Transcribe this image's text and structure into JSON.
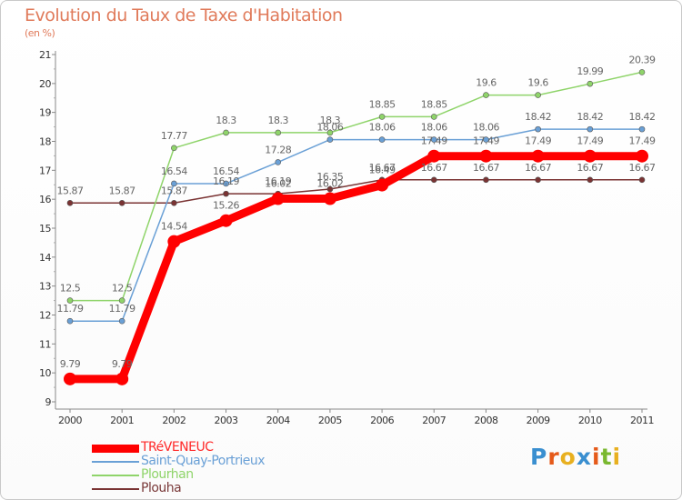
{
  "chart_data": {
    "type": "line",
    "title": "Evolution du Taux de Taxe d'Habitation",
    "ylabel": "(en %)",
    "xlabel": "",
    "x": [
      "2000",
      "2001",
      "2002",
      "2003",
      "2004",
      "2005",
      "2006",
      "2007",
      "2008",
      "2009",
      "2010",
      "2011"
    ],
    "y_ticks": [
      "9",
      "10",
      "11",
      "12",
      "13",
      "14",
      "15",
      "16",
      "17",
      "18",
      "19",
      "20",
      "21"
    ],
    "ylim": [
      9,
      21
    ],
    "series": [
      {
        "name": "TRéVENEUC",
        "color": "#ff0000",
        "values": [
          9.79,
          9.79,
          14.54,
          15.26,
          16.02,
          16.02,
          16.49,
          17.49,
          17.49,
          17.49,
          17.49,
          17.49
        ],
        "labels": [
          "9.79",
          "9.79",
          "14.54",
          "15.26",
          "16.02",
          "16.02",
          "16.49",
          "17.49",
          "17.49",
          "17.49",
          "17.49",
          "17.49"
        ]
      },
      {
        "name": "Saint-Quay-Portrieux",
        "color": "#6aa0d6",
        "values": [
          11.79,
          11.79,
          16.54,
          16.54,
          17.28,
          18.06,
          18.06,
          18.06,
          18.06,
          18.42,
          18.42,
          18.42
        ],
        "labels": [
          "11.79",
          "11.79",
          "16.54",
          "16.54",
          "17.28",
          "18.06",
          "18.06",
          "18.06",
          "18.06",
          "18.42",
          "18.42",
          "18.42"
        ]
      },
      {
        "name": "Plourhan",
        "color": "#8fd46a",
        "values": [
          12.5,
          12.5,
          17.77,
          18.3,
          18.3,
          18.3,
          18.85,
          18.85,
          19.6,
          19.6,
          19.99,
          20.39
        ],
        "labels": [
          "12.5",
          "12.5",
          "17.77",
          "18.3",
          "18.3",
          "18.3",
          "18.85",
          "18.85",
          "19.6",
          "19.6",
          "19.99",
          "20.39"
        ]
      },
      {
        "name": "Plouha",
        "color": "#7a3333",
        "values": [
          15.87,
          15.87,
          15.87,
          16.19,
          16.19,
          16.35,
          16.67,
          16.67,
          16.67,
          16.67,
          16.67,
          16.67
        ],
        "labels": [
          "15.87",
          "15.87",
          "15.87",
          "16.19",
          "16.19",
          "16.35",
          "16.67",
          "16.67",
          "16.67",
          "16.67",
          "16.67",
          "16.67"
        ]
      }
    ],
    "grid": false,
    "legend_position": "bottom-left"
  },
  "logo": {
    "letters": [
      "P",
      "r",
      "o",
      "x",
      "i",
      "t",
      "i"
    ],
    "colors": [
      "#3a8fd0",
      "#e55a1a",
      "#e8b020",
      "#3a8fd0",
      "#e55a1a",
      "#7ab830",
      "#e8b020"
    ]
  }
}
